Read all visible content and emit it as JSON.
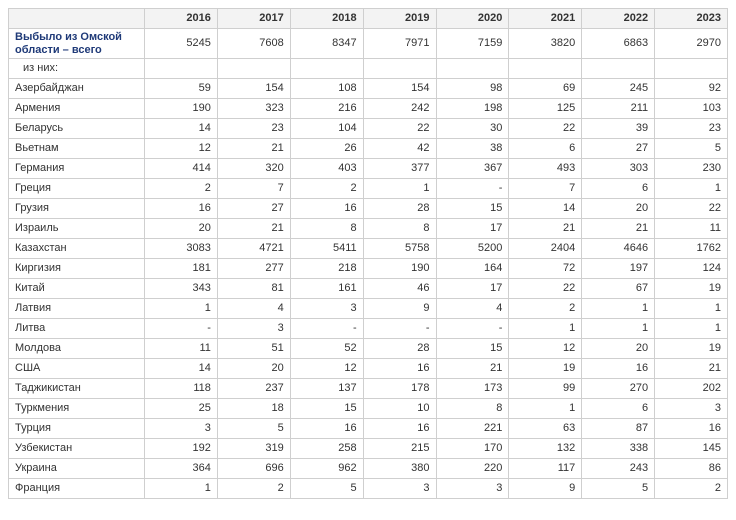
{
  "table": {
    "columns": [
      2016,
      2017,
      2018,
      2019,
      2020,
      2021,
      2022,
      2023
    ],
    "total": {
      "label": "Выбыло из Омской области – всего",
      "values": [
        5245,
        7608,
        8347,
        7971,
        7159,
        3820,
        6863,
        2970
      ]
    },
    "subheader": "из них:",
    "rows": [
      {
        "label": "Азербайджан",
        "values": [
          59,
          154,
          108,
          154,
          98,
          69,
          245,
          92
        ]
      },
      {
        "label": "Армения",
        "values": [
          190,
          323,
          216,
          242,
          198,
          125,
          211,
          103
        ]
      },
      {
        "label": "Беларусь",
        "values": [
          14,
          23,
          104,
          22,
          30,
          22,
          39,
          23
        ]
      },
      {
        "label": "Вьетнам",
        "values": [
          12,
          21,
          26,
          42,
          38,
          6,
          27,
          5
        ]
      },
      {
        "label": "Германия",
        "values": [
          414,
          320,
          403,
          377,
          367,
          493,
          303,
          230
        ]
      },
      {
        "label": "Греция",
        "values": [
          2,
          7,
          2,
          1,
          "-",
          7,
          6,
          1
        ]
      },
      {
        "label": "Грузия",
        "values": [
          16,
          27,
          16,
          28,
          15,
          14,
          20,
          22
        ]
      },
      {
        "label": "Израиль",
        "values": [
          20,
          21,
          8,
          8,
          17,
          21,
          21,
          11
        ]
      },
      {
        "label": "Казахстан",
        "values": [
          3083,
          4721,
          5411,
          5758,
          5200,
          2404,
          4646,
          1762
        ]
      },
      {
        "label": "Киргизия",
        "values": [
          181,
          277,
          218,
          190,
          164,
          72,
          197,
          124
        ]
      },
      {
        "label": "Китай",
        "values": [
          343,
          81,
          161,
          46,
          17,
          22,
          67,
          19
        ]
      },
      {
        "label": "Латвия",
        "values": [
          1,
          4,
          3,
          9,
          4,
          2,
          1,
          1
        ]
      },
      {
        "label": "Литва",
        "values": [
          "-",
          3,
          "-",
          "-",
          "-",
          1,
          1,
          1
        ]
      },
      {
        "label": "Молдова",
        "values": [
          11,
          51,
          52,
          28,
          15,
          12,
          20,
          19
        ]
      },
      {
        "label": "США",
        "values": [
          14,
          20,
          12,
          16,
          21,
          19,
          16,
          21
        ]
      },
      {
        "label": "Таджикистан",
        "values": [
          118,
          237,
          137,
          178,
          173,
          99,
          270,
          202
        ]
      },
      {
        "label": "Туркмения",
        "values": [
          25,
          18,
          15,
          10,
          8,
          1,
          6,
          3
        ]
      },
      {
        "label": "Турция",
        "values": [
          3,
          5,
          16,
          16,
          221,
          63,
          87,
          16
        ]
      },
      {
        "label": "Узбекистан",
        "values": [
          192,
          319,
          258,
          215,
          170,
          132,
          338,
          145
        ]
      },
      {
        "label": "Украина",
        "values": [
          364,
          696,
          962,
          380,
          220,
          117,
          243,
          86
        ]
      },
      {
        "label": "Франция",
        "values": [
          1,
          2,
          5,
          3,
          3,
          9,
          5,
          2
        ]
      }
    ]
  }
}
